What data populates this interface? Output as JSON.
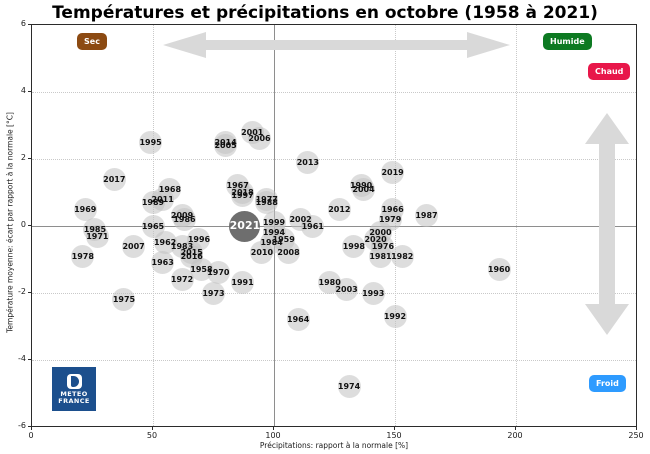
{
  "title": "Températures et précipitations en octobre (1958 à 2021)",
  "badges": {
    "sec": {
      "label": "Sec",
      "color": "#8c4a12"
    },
    "humide": {
      "label": "Humide",
      "color": "#0d7a22"
    },
    "chaud": {
      "label": "Chaud",
      "color": "#e8174a"
    },
    "froid": {
      "label": "Froid",
      "color": "#2e9bff"
    }
  },
  "logo": {
    "line1": "METEO",
    "line2": "FRANCE"
  },
  "axes": {
    "x": {
      "label": "Précipitations: rapport à la normale [%]",
      "min": 0,
      "max": 250,
      "ticks": [
        0,
        50,
        100,
        150,
        200,
        250
      ],
      "emphasis": 100
    },
    "y": {
      "label": "Température moyenne: écart par rapport à la normale [°C]",
      "min": -6,
      "max": 6,
      "ticks": [
        -6,
        -4,
        -2,
        0,
        2,
        4,
        6
      ],
      "emphasis": 0
    }
  },
  "colors": {
    "point": "rgba(193,193,193,0.55)",
    "highlight_point": "#6e6e6e",
    "arrow": "#d9d9d9",
    "grid": "#c9c9c9",
    "grid_emphasis": "#8e8e8e"
  },
  "chart_data": {
    "type": "scatter",
    "title": "Températures et précipitations en octobre (1958 à 2021)",
    "xlabel": "Précipitations: rapport à la normale [%]",
    "ylabel": "Température moyenne: écart par rapport à la normale [°C]",
    "xlim": [
      0,
      250
    ],
    "ylim": [
      -6,
      6
    ],
    "grid": true,
    "highlight_year": 2021,
    "points": [
      {
        "year": 1958,
        "precip": 70,
        "temp": -1.3
      },
      {
        "year": 1959,
        "precip": 104,
        "temp": -0.4
      },
      {
        "year": 1960,
        "precip": 193,
        "temp": -1.3
      },
      {
        "year": 1961,
        "precip": 116,
        "temp": 0.0
      },
      {
        "year": 1962,
        "precip": 55,
        "temp": -0.5
      },
      {
        "year": 1963,
        "precip": 54,
        "temp": -1.1
      },
      {
        "year": 1964,
        "precip": 110,
        "temp": -2.8
      },
      {
        "year": 1965,
        "precip": 50,
        "temp": 0.0
      },
      {
        "year": 1966,
        "precip": 149,
        "temp": 0.5
      },
      {
        "year": 1967,
        "precip": 85,
        "temp": 1.2
      },
      {
        "year": 1968,
        "precip": 57,
        "temp": 1.1
      },
      {
        "year": 1969,
        "precip": 22,
        "temp": 0.5
      },
      {
        "year": 1970,
        "precip": 77,
        "temp": -1.4
      },
      {
        "year": 1971,
        "precip": 27,
        "temp": -0.3
      },
      {
        "year": 1972,
        "precip": 62,
        "temp": -1.6
      },
      {
        "year": 1973,
        "precip": 75,
        "temp": -2.0
      },
      {
        "year": 1974,
        "precip": 131,
        "temp": -4.8
      },
      {
        "year": 1975,
        "precip": 38,
        "temp": -2.2
      },
      {
        "year": 1976,
        "precip": 145,
        "temp": -0.6
      },
      {
        "year": 1977,
        "precip": 97,
        "temp": 0.8
      },
      {
        "year": 1978,
        "precip": 21,
        "temp": -0.9
      },
      {
        "year": 1979,
        "precip": 148,
        "temp": 0.2
      },
      {
        "year": 1980,
        "precip": 123,
        "temp": -1.7
      },
      {
        "year": 1981,
        "precip": 144,
        "temp": -0.9
      },
      {
        "year": 1982,
        "precip": 153,
        "temp": -0.9
      },
      {
        "year": 1983,
        "precip": 62,
        "temp": -0.6
      },
      {
        "year": 1984,
        "precip": 99,
        "temp": -0.5
      },
      {
        "year": 1985,
        "precip": 26,
        "temp": -0.1
      },
      {
        "year": 1986,
        "precip": 63,
        "temp": 0.2
      },
      {
        "year": 1987,
        "precip": 163,
        "temp": 0.3
      },
      {
        "year": 1988,
        "precip": 97,
        "temp": 0.7
      },
      {
        "year": 1989,
        "precip": 50,
        "temp": 0.7
      },
      {
        "year": 1990,
        "precip": 136,
        "temp": 1.2
      },
      {
        "year": 1991,
        "precip": 87,
        "temp": -1.7
      },
      {
        "year": 1992,
        "precip": 150,
        "temp": -2.7
      },
      {
        "year": 1993,
        "precip": 141,
        "temp": -2.0
      },
      {
        "year": 1994,
        "precip": 100,
        "temp": -0.2
      },
      {
        "year": 1995,
        "precip": 49,
        "temp": 2.5
      },
      {
        "year": 1996,
        "precip": 69,
        "temp": -0.4
      },
      {
        "year": 1997,
        "precip": 87,
        "temp": 0.9
      },
      {
        "year": 1998,
        "precip": 133,
        "temp": -0.6
      },
      {
        "year": 1999,
        "precip": 100,
        "temp": 0.1
      },
      {
        "year": 2000,
        "precip": 144,
        "temp": -0.2
      },
      {
        "year": 2001,
        "precip": 91,
        "temp": 2.8
      },
      {
        "year": 2002,
        "precip": 111,
        "temp": 0.2
      },
      {
        "year": 2003,
        "precip": 130,
        "temp": -1.9
      },
      {
        "year": 2004,
        "precip": 137,
        "temp": 1.1
      },
      {
        "year": 2005,
        "precip": 80,
        "temp": 2.4
      },
      {
        "year": 2006,
        "precip": 94,
        "temp": 2.6
      },
      {
        "year": 2007,
        "precip": 42,
        "temp": -0.6
      },
      {
        "year": 2008,
        "precip": 106,
        "temp": -0.8
      },
      {
        "year": 2009,
        "precip": 62,
        "temp": 0.3
      },
      {
        "year": 2010,
        "precip": 95,
        "temp": -0.8
      },
      {
        "year": 2011,
        "precip": 54,
        "temp": 0.8
      },
      {
        "year": 2012,
        "precip": 127,
        "temp": 0.5
      },
      {
        "year": 2013,
        "precip": 114,
        "temp": 1.9
      },
      {
        "year": 2014,
        "precip": 80,
        "temp": 2.5
      },
      {
        "year": 2015,
        "precip": 66,
        "temp": -0.8
      },
      {
        "year": 2016,
        "precip": 66,
        "temp": -0.9
      },
      {
        "year": 2017,
        "precip": 34,
        "temp": 1.4
      },
      {
        "year": 2018,
        "precip": 87,
        "temp": 1.0
      },
      {
        "year": 2019,
        "precip": 149,
        "temp": 1.6
      },
      {
        "year": 2020,
        "precip": 142,
        "temp": -0.4
      },
      {
        "year": 2021,
        "precip": 88,
        "temp": 0.0
      }
    ]
  }
}
